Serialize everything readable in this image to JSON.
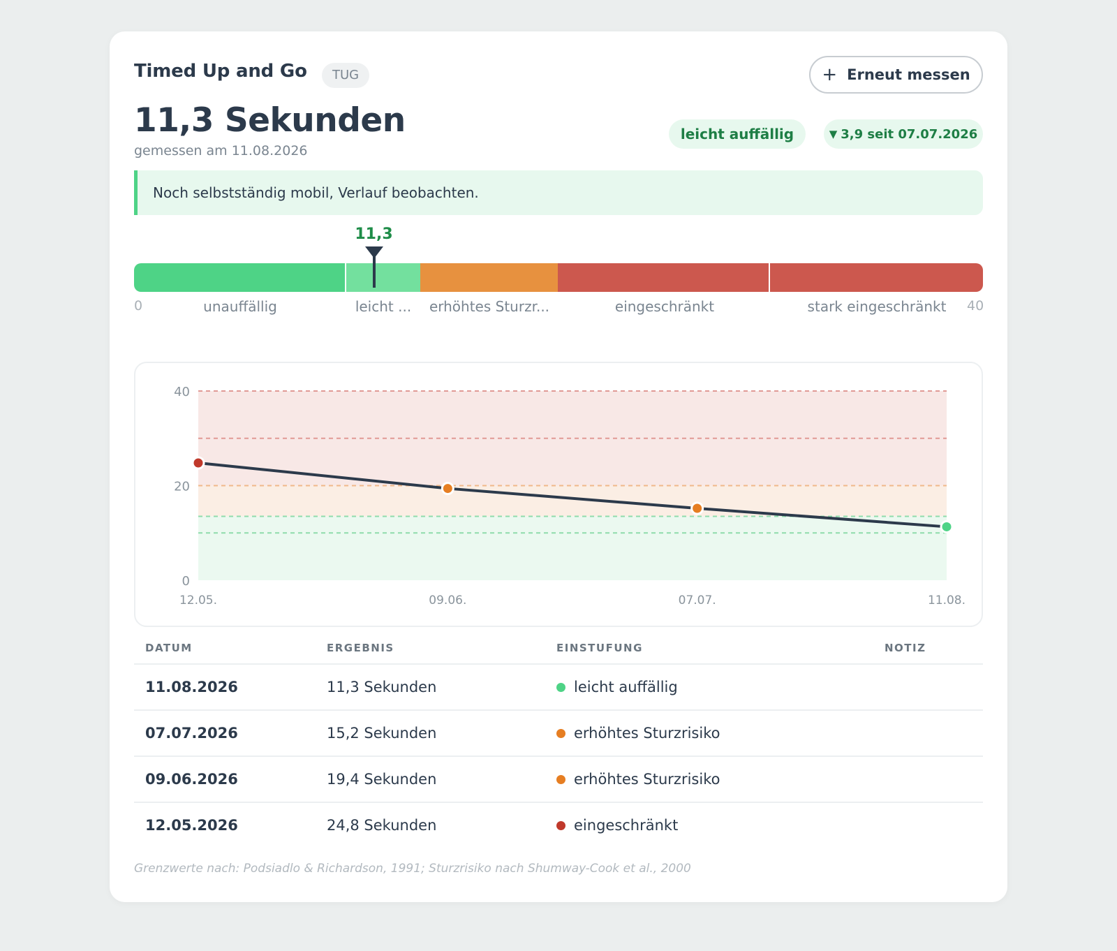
{
  "header": {
    "title": "Timed Up and Go",
    "tag": "TUG",
    "remeasure_button": "Erneut messen"
  },
  "result": {
    "value": "11,3 Sekunden",
    "measured_on": "gemessen am 11.08.2026",
    "classification": "leicht auffällig",
    "trend_arrow": "▼",
    "trend": "3,9 seit 07.07.2026"
  },
  "note": "Noch selbstständig mobil, Verlauf beobachten.",
  "scale": {
    "current_value": "11,3",
    "current_numeric": 11.3,
    "min": "0",
    "max": "40",
    "bands": [
      {
        "label": "unauffällig",
        "from": 0,
        "to": 10,
        "color": "#4ed386"
      },
      {
        "label": "leicht ...",
        "from": 10,
        "to": 13.5,
        "color": "#73e09e"
      },
      {
        "label": "erhöhtes Sturzr...",
        "from": 13.5,
        "to": 20,
        "color": "#e7913f"
      },
      {
        "label": "eingeschränkt",
        "from": 20,
        "to": 30,
        "color": "#cc584e"
      },
      {
        "label": "stark eingeschränkt",
        "from": 30,
        "to": 40,
        "color": "#cc584e"
      }
    ]
  },
  "chart_data": {
    "type": "line",
    "x": [
      "12.05.",
      "09.06.",
      "07.07.",
      "11.08."
    ],
    "values": [
      24.8,
      19.4,
      15.2,
      11.3
    ],
    "point_colors": [
      "#c0392b",
      "#e67e22",
      "#e67e22",
      "#4ed386"
    ],
    "ylim": [
      0,
      40
    ],
    "yticks": [
      "0",
      "20",
      "40"
    ],
    "thresholds": [
      10,
      13.5,
      20,
      30,
      40
    ],
    "grid": false,
    "title": "",
    "xlabel": "",
    "ylabel": ""
  },
  "table": {
    "headers": {
      "date": "DATUM",
      "result": "ERGEBNIS",
      "classification": "EINSTUFUNG",
      "note": "NOTIZ"
    },
    "rows": [
      {
        "date": "11.08.2026",
        "result": "11,3 Sekunden",
        "classification": "leicht auffällig",
        "color": "#4ed386"
      },
      {
        "date": "07.07.2026",
        "result": "15,2 Sekunden",
        "classification": "erhöhtes Sturzrisiko",
        "color": "#e67e22"
      },
      {
        "date": "09.06.2026",
        "result": "19,4 Sekunden",
        "classification": "erhöhtes Sturzrisiko",
        "color": "#e67e22"
      },
      {
        "date": "12.05.2026",
        "result": "24,8 Sekunden",
        "classification": "eingeschränkt",
        "color": "#c0392b"
      }
    ]
  },
  "footer": "Grenzwerte nach: Podsiadlo & Richardson, 1991; Sturzrisiko nach Shumway-Cook et al., 2000",
  "icons": {
    "add": "plus-icon",
    "trend": "triangle-down-icon",
    "marker": "marker-pointer-icon"
  }
}
